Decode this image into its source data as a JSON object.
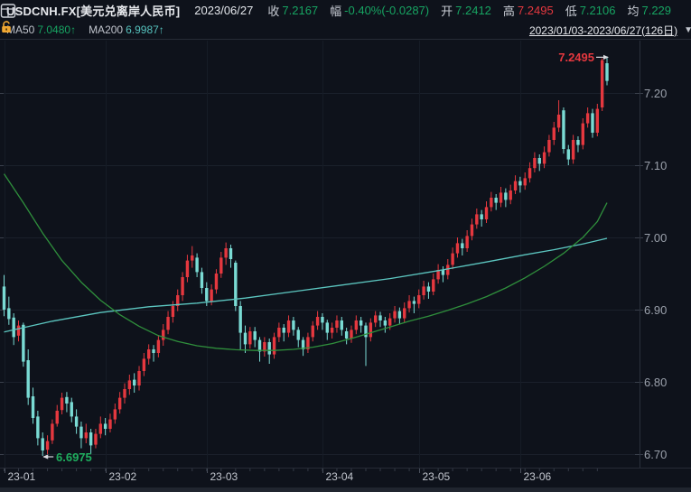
{
  "header": {
    "symbol": "USDCNH.FX[美元兑离岸人民币]",
    "date": "2023/06/27",
    "quote_fields": [
      {
        "label": "收",
        "value": "7.2167",
        "color": "green"
      },
      {
        "label": "幅",
        "value": "-0.40%(-0.0287)",
        "color": "green"
      },
      {
        "label": "开",
        "value": "7.2412",
        "color": "green"
      },
      {
        "label": "高",
        "value": "7.2495",
        "color": "red"
      },
      {
        "label": "低",
        "value": "7.2106",
        "color": "green"
      },
      {
        "label": "均",
        "value": "7.229",
        "color": "green"
      }
    ],
    "ma_indicators": [
      {
        "label": "MA50",
        "value": "7.0480",
        "arrow": "↑",
        "color": "green"
      },
      {
        "label": "MA200",
        "value": "6.9987",
        "arrow": "↑",
        "color": "cyan"
      }
    ],
    "range_selector": "2023/01/03-2023/06/27(126日)",
    "icons": [
      "grid-icon",
      "caret-down-icon",
      "unlock-icon"
    ]
  },
  "colors": {
    "background": "#0e121b",
    "up_candle": "#e5383f",
    "down_candle": "#7adbd4",
    "ma50_line": "#2f8f3c",
    "ma200_line": "#5cc6c0",
    "green_text": "#17a462",
    "red_text": "#e5383f",
    "cyan_text": "#56c2bd",
    "gridline": "#1a202b",
    "axis_line": "#2a303b",
    "axis_text": "#9aa0ab",
    "annotation_arrow": "#d9dbe0"
  },
  "chart_data": {
    "type": "candlestick",
    "title": "USDCNH.FX 美元兑离岸人民币 日K 2023/01/03-2023/06/27",
    "num_days": 126,
    "ylim": [
      6.6825,
      7.2725
    ],
    "y_ticks": [
      {
        "label": "7.20",
        "value": 7.2
      },
      {
        "label": "7.10",
        "value": 7.1
      },
      {
        "label": "7.00",
        "value": 7.0
      },
      {
        "label": "6.90",
        "value": 6.9
      },
      {
        "label": "6.80",
        "value": 6.8
      },
      {
        "label": "6.70",
        "value": 6.7
      }
    ],
    "month_ticks": [
      {
        "label": "23-01",
        "day": 0
      },
      {
        "label": "23-02",
        "day": 21
      },
      {
        "label": "23-03",
        "day": 42
      },
      {
        "label": "23-04",
        "day": 66
      },
      {
        "label": "23-05",
        "day": 86
      },
      {
        "label": "23-06",
        "day": 107
      }
    ],
    "candles": [
      [
        6.932,
        6.948,
        6.891,
        6.9
      ],
      [
        6.902,
        6.918,
        6.879,
        6.887
      ],
      [
        6.889,
        6.895,
        6.851,
        6.862
      ],
      [
        6.864,
        6.885,
        6.856,
        6.878
      ],
      [
        6.879,
        6.882,
        6.821,
        6.828
      ],
      [
        6.83,
        6.845,
        6.768,
        6.778
      ],
      [
        6.78,
        6.792,
        6.742,
        6.75
      ],
      [
        6.752,
        6.76,
        6.712,
        6.722
      ],
      [
        6.722,
        6.73,
        6.6975,
        6.705
      ],
      [
        6.706,
        6.726,
        6.7,
        6.718
      ],
      [
        6.719,
        6.748,
        6.714,
        6.742
      ],
      [
        6.742,
        6.768,
        6.738,
        6.76
      ],
      [
        6.761,
        6.785,
        6.755,
        6.778
      ],
      [
        6.779,
        6.786,
        6.758,
        6.77
      ],
      [
        6.772,
        6.778,
        6.744,
        6.752
      ],
      [
        6.752,
        6.762,
        6.728,
        6.738
      ],
      [
        6.738,
        6.745,
        6.708,
        6.722
      ],
      [
        6.722,
        6.742,
        6.715,
        6.73
      ],
      [
        6.73,
        6.735,
        6.7,
        6.712
      ],
      [
        6.713,
        6.735,
        6.708,
        6.728
      ],
      [
        6.728,
        6.752,
        6.722,
        6.742
      ],
      [
        6.742,
        6.75,
        6.726,
        6.735
      ],
      [
        6.735,
        6.756,
        6.73,
        6.748
      ],
      [
        6.748,
        6.77,
        6.742,
        6.762
      ],
      [
        6.762,
        6.786,
        6.756,
        6.778
      ],
      [
        6.778,
        6.798,
        6.77,
        6.79
      ],
      [
        6.79,
        6.81,
        6.782,
        6.802
      ],
      [
        6.803,
        6.812,
        6.785,
        6.795
      ],
      [
        6.795,
        6.822,
        6.788,
        6.815
      ],
      [
        6.815,
        6.84,
        6.808,
        6.832
      ],
      [
        6.832,
        6.852,
        6.824,
        6.845
      ],
      [
        6.845,
        6.851,
        6.828,
        6.84
      ],
      [
        6.84,
        6.865,
        6.834,
        6.858
      ],
      [
        6.858,
        6.88,
        6.85,
        6.872
      ],
      [
        6.872,
        6.898,
        6.866,
        6.89
      ],
      [
        6.89,
        6.912,
        6.882,
        6.905
      ],
      [
        6.905,
        6.928,
        6.898,
        6.92
      ],
      [
        6.92,
        6.952,
        6.912,
        6.945
      ],
      [
        6.945,
        6.976,
        6.938,
        6.968
      ],
      [
        6.968,
        6.988,
        6.958,
        6.975
      ],
      [
        6.972,
        6.978,
        6.945,
        6.952
      ],
      [
        6.952,
        6.958,
        6.922,
        6.93
      ],
      [
        6.93,
        6.938,
        6.905,
        6.912
      ],
      [
        6.912,
        6.935,
        6.906,
        6.928
      ],
      [
        6.928,
        6.956,
        6.922,
        6.95
      ],
      [
        6.95,
        6.98,
        6.944,
        6.972
      ],
      [
        6.972,
        6.993,
        6.962,
        6.985
      ],
      [
        6.985,
        6.99,
        6.958,
        6.97
      ],
      [
        6.965,
        6.968,
        6.898,
        6.905
      ],
      [
        6.905,
        6.912,
        6.845,
        6.868
      ],
      [
        6.868,
        6.878,
        6.84,
        6.852
      ],
      [
        6.852,
        6.876,
        6.846,
        6.87
      ],
      [
        6.87,
        6.876,
        6.848,
        6.858
      ],
      [
        6.858,
        6.862,
        6.828,
        6.842
      ],
      [
        6.842,
        6.862,
        6.835,
        6.855
      ],
      [
        6.855,
        6.86,
        6.825,
        6.838
      ],
      [
        6.838,
        6.868,
        6.832,
        6.862
      ],
      [
        6.862,
        6.882,
        6.855,
        6.875
      ],
      [
        6.875,
        6.88,
        6.856,
        6.868
      ],
      [
        6.868,
        6.892,
        6.862,
        6.885
      ],
      [
        6.885,
        6.89,
        6.864,
        6.872
      ],
      [
        6.872,
        6.876,
        6.848,
        6.858
      ],
      [
        6.858,
        6.862,
        6.836,
        6.845
      ],
      [
        6.845,
        6.868,
        6.84,
        6.862
      ],
      [
        6.862,
        6.884,
        6.856,
        6.878
      ],
      [
        6.878,
        6.898,
        6.872,
        6.89
      ],
      [
        6.89,
        6.895,
        6.872,
        6.882
      ],
      [
        6.882,
        6.886,
        6.858,
        6.868
      ],
      [
        6.868,
        6.882,
        6.86,
        6.875
      ],
      [
        6.875,
        6.892,
        6.868,
        6.885
      ],
      [
        6.885,
        6.89,
        6.864,
        6.872
      ],
      [
        6.87,
        6.875,
        6.852,
        6.86
      ],
      [
        6.86,
        6.878,
        6.854,
        6.872
      ],
      [
        6.872,
        6.892,
        6.866,
        6.885
      ],
      [
        6.885,
        6.89,
        6.868,
        6.878
      ],
      [
        6.878,
        6.882,
        6.822,
        6.862
      ],
      [
        6.862,
        6.888,
        6.856,
        6.882
      ],
      [
        6.882,
        6.898,
        6.876,
        6.892
      ],
      [
        6.892,
        6.897,
        6.876,
        6.885
      ],
      [
        6.885,
        6.89,
        6.868,
        6.878
      ],
      [
        6.878,
        6.895,
        6.872,
        6.888
      ],
      [
        6.888,
        6.905,
        6.882,
        6.898
      ],
      [
        6.898,
        6.903,
        6.88,
        6.888
      ],
      [
        6.888,
        6.91,
        6.882,
        6.902
      ],
      [
        6.902,
        6.92,
        6.896,
        6.912
      ],
      [
        6.912,
        6.918,
        6.895,
        6.908
      ],
      [
        6.908,
        6.928,
        6.902,
        6.92
      ],
      [
        6.92,
        6.94,
        6.914,
        6.932
      ],
      [
        6.932,
        6.938,
        6.915,
        6.925
      ],
      [
        6.925,
        6.95,
        6.92,
        6.942
      ],
      [
        6.942,
        6.963,
        6.936,
        6.955
      ],
      [
        6.955,
        6.96,
        6.938,
        6.948
      ],
      [
        6.948,
        6.97,
        6.942,
        6.962
      ],
      [
        6.962,
        6.986,
        6.956,
        6.978
      ],
      [
        6.978,
        7.0,
        6.972,
        6.992
      ],
      [
        6.992,
        6.998,
        6.975,
        6.985
      ],
      [
        6.985,
        7.01,
        6.98,
        7.002
      ],
      [
        7.002,
        7.026,
        6.996,
        7.018
      ],
      [
        7.018,
        7.04,
        7.012,
        7.032
      ],
      [
        7.032,
        7.038,
        7.015,
        7.025
      ],
      [
        7.025,
        7.05,
        7.02,
        7.042
      ],
      [
        7.042,
        7.063,
        7.036,
        7.055
      ],
      [
        7.055,
        7.06,
        7.038,
        7.048
      ],
      [
        7.048,
        7.07,
        7.042,
        7.062
      ],
      [
        7.062,
        7.068,
        7.042,
        7.052
      ],
      [
        7.052,
        7.073,
        7.046,
        7.065
      ],
      [
        7.065,
        7.086,
        7.06,
        7.078
      ],
      [
        7.078,
        7.084,
        7.062,
        7.072
      ],
      [
        7.072,
        7.09,
        7.066,
        7.082
      ],
      [
        7.082,
        7.104,
        7.076,
        7.096
      ],
      [
        7.096,
        7.118,
        7.09,
        7.11
      ],
      [
        7.11,
        7.115,
        7.092,
        7.102
      ],
      [
        7.102,
        7.126,
        7.096,
        7.118
      ],
      [
        7.118,
        7.142,
        7.112,
        7.135
      ],
      [
        7.135,
        7.16,
        7.128,
        7.152
      ],
      [
        7.152,
        7.19,
        7.146,
        7.17
      ],
      [
        7.176,
        7.18,
        7.116,
        7.1225
      ],
      [
        7.122,
        7.128,
        7.1,
        7.108
      ],
      [
        7.108,
        7.142,
        7.102,
        7.135
      ],
      [
        7.135,
        7.14,
        7.118,
        7.128
      ],
      [
        7.128,
        7.165,
        7.122,
        7.158
      ],
      [
        7.158,
        7.18,
        7.152,
        7.172
      ],
      [
        7.172,
        7.178,
        7.138,
        7.145
      ],
      [
        7.145,
        7.185,
        7.14,
        7.178
      ],
      [
        7.18,
        7.248,
        7.175,
        7.2454
      ],
      [
        7.2412,
        7.2495,
        7.2106,
        7.2167
      ]
    ],
    "ma50": {
      "name": "MA50",
      "shown_value": "7.0480",
      "points": [
        [
          0,
          7.088
        ],
        [
          4,
          7.048
        ],
        [
          8,
          7.006
        ],
        [
          12,
          6.968
        ],
        [
          16,
          6.938
        ],
        [
          20,
          6.913
        ],
        [
          24,
          6.893
        ],
        [
          28,
          6.877
        ],
        [
          32,
          6.864
        ],
        [
          36,
          6.856
        ],
        [
          40,
          6.85
        ],
        [
          44,
          6.8465
        ],
        [
          48,
          6.8445
        ],
        [
          52,
          6.8435
        ],
        [
          56,
          6.8435
        ],
        [
          60,
          6.845
        ],
        [
          64,
          6.848
        ],
        [
          68,
          6.853
        ],
        [
          72,
          6.86
        ],
        [
          76,
          6.868
        ],
        [
          80,
          6.876
        ],
        [
          84,
          6.884
        ],
        [
          88,
          6.891
        ],
        [
          92,
          6.899
        ],
        [
          96,
          6.908
        ],
        [
          100,
          6.918
        ],
        [
          104,
          6.93
        ],
        [
          108,
          6.944
        ],
        [
          112,
          6.96
        ],
        [
          116,
          6.978
        ],
        [
          120,
          7.0
        ],
        [
          123,
          7.022
        ],
        [
          125,
          7.048
        ]
      ]
    },
    "ma200": {
      "name": "MA200",
      "shown_value": "6.9987",
      "points": [
        [
          0,
          6.869
        ],
        [
          10,
          6.884
        ],
        [
          20,
          6.896
        ],
        [
          30,
          6.904
        ],
        [
          40,
          6.909
        ],
        [
          50,
          6.916
        ],
        [
          60,
          6.925
        ],
        [
          70,
          6.934
        ],
        [
          80,
          6.943
        ],
        [
          90,
          6.954
        ],
        [
          100,
          6.966
        ],
        [
          108,
          6.976
        ],
        [
          114,
          6.983
        ],
        [
          120,
          6.991
        ],
        [
          125,
          6.9987
        ]
      ]
    },
    "annotations": {
      "high": {
        "text": "7.2495",
        "day": 125,
        "price": 7.2495,
        "arrow": "right"
      },
      "low": {
        "text": "6.6975",
        "day": 8,
        "price": 6.6975,
        "arrow": "left"
      }
    },
    "legend_position": "top-left",
    "grid": true
  }
}
